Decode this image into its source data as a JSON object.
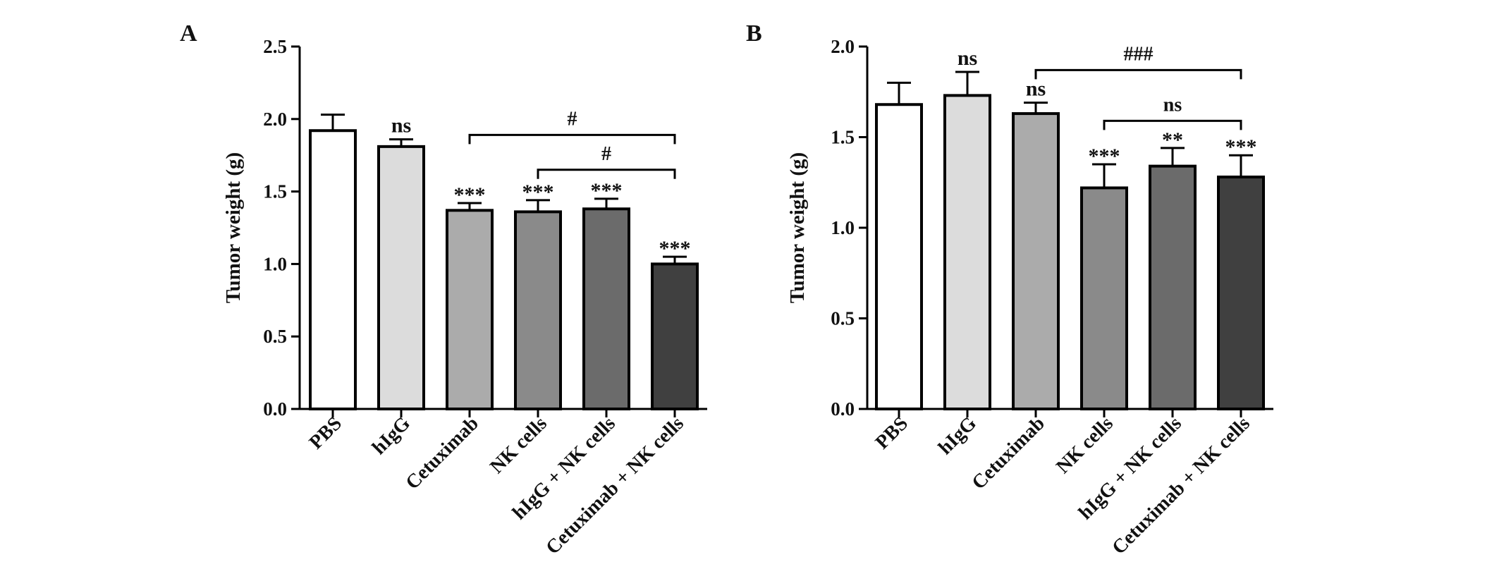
{
  "chart_data": [
    {
      "type": "bar",
      "panel": "A",
      "ylabel": "Tumor weight (g)",
      "xlabel": "",
      "ylim": [
        0,
        2.5
      ],
      "yticks": [
        "0.0",
        "0.5",
        "1.0",
        "1.5",
        "2.0",
        "2.5"
      ],
      "categories": [
        "PBS",
        "hIgG",
        "Cetuximab",
        "NK cells",
        "hIgG + NK cells",
        "Cetuximab + NK cells"
      ],
      "values": [
        1.92,
        1.81,
        1.37,
        1.36,
        1.38,
        1.0
      ],
      "errors": [
        0.11,
        0.05,
        0.05,
        0.08,
        0.07,
        0.05
      ],
      "bar_colors": [
        "#ffffff",
        "#dcdcdc",
        "#ababab",
        "#8a8a8a",
        "#6b6b6b",
        "#404040"
      ],
      "significance": [
        "",
        "ns",
        "***",
        "***",
        "***",
        "***"
      ],
      "brackets": [
        {
          "from": 2,
          "to": 5,
          "y": 1.89,
          "label": "#"
        },
        {
          "from": 3,
          "to": 5,
          "y": 1.65,
          "label": "#"
        }
      ]
    },
    {
      "type": "bar",
      "panel": "B",
      "ylabel": "Tumor weight (g)",
      "xlabel": "",
      "ylim": [
        0,
        2.0
      ],
      "yticks": [
        "0.0",
        "0.5",
        "1.0",
        "1.5",
        "2.0"
      ],
      "categories": [
        "PBS",
        "hIgG",
        "Cetuximab",
        "NK cells",
        "hIgG + NK cells",
        "Cetuximab + NK cells"
      ],
      "values": [
        1.68,
        1.73,
        1.63,
        1.22,
        1.34,
        1.28
      ],
      "errors": [
        0.12,
        0.13,
        0.06,
        0.13,
        0.1,
        0.12
      ],
      "bar_colors": [
        "#ffffff",
        "#dcdcdc",
        "#ababab",
        "#8a8a8a",
        "#6b6b6b",
        "#404040"
      ],
      "significance": [
        "",
        "ns",
        "ns",
        "***",
        "**",
        "***"
      ],
      "brackets": [
        {
          "from": 2,
          "to": 5,
          "y": 1.87,
          "label": "###"
        },
        {
          "from": 3,
          "to": 5,
          "y": 1.59,
          "label": "ns"
        }
      ]
    }
  ]
}
